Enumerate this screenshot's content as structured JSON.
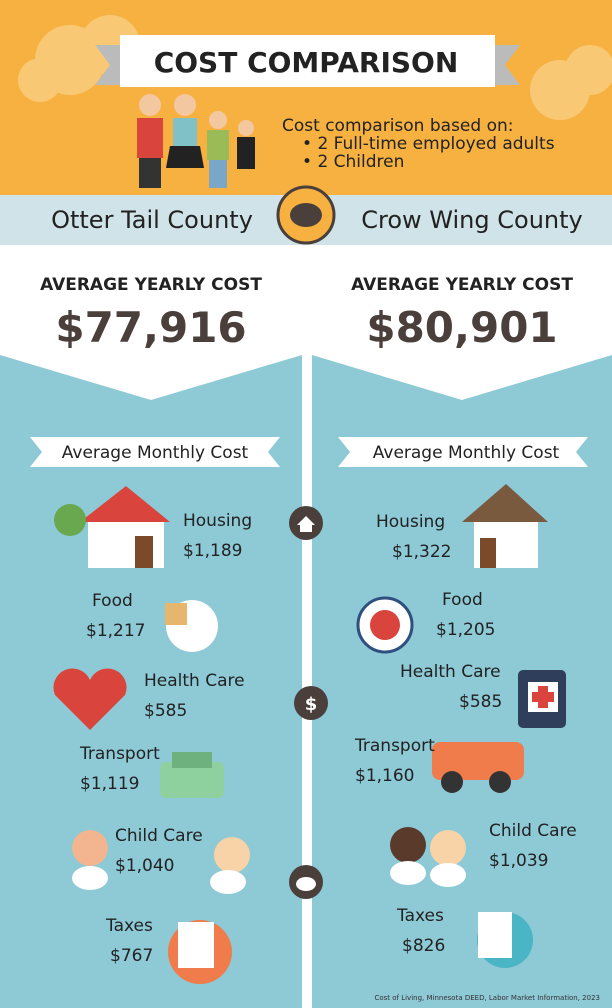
{
  "header": {
    "title": "COST COMPARISON",
    "basis": "Cost comparison based on:",
    "bullets": [
      "2 Full-time employed adults",
      "2 Children"
    ]
  },
  "counties": [
    {
      "name": "Otter Tail County",
      "yearly_label": "AVERAGE YEARLY COST",
      "yearly": "$77,916",
      "monthly_label": "Average Monthly Cost",
      "items": [
        [
          "Housing",
          "$1,189"
        ],
        [
          "Food",
          "$1,217"
        ],
        [
          "Health Care",
          "$585"
        ],
        [
          "Transport",
          "$1,119"
        ],
        [
          "Child Care",
          "$1,040"
        ],
        [
          "Taxes",
          "$767"
        ]
      ]
    },
    {
      "name": "Crow Wing County",
      "yearly_label": "AVERAGE YEARLY COST",
      "yearly": "$80,901",
      "monthly_label": "Average Monthly Cost",
      "items": [
        [
          "Housing",
          "$1,322"
        ],
        [
          "Food",
          "$1,205"
        ],
        [
          "Health Care",
          "$585"
        ],
        [
          "Transport",
          "$1,160"
        ],
        [
          "Child Care",
          "$1,039"
        ],
        [
          "Taxes",
          "$826"
        ]
      ]
    }
  ],
  "footer": "Cost of Living, Minnesota DEED, Labor Market Information, 2023"
}
